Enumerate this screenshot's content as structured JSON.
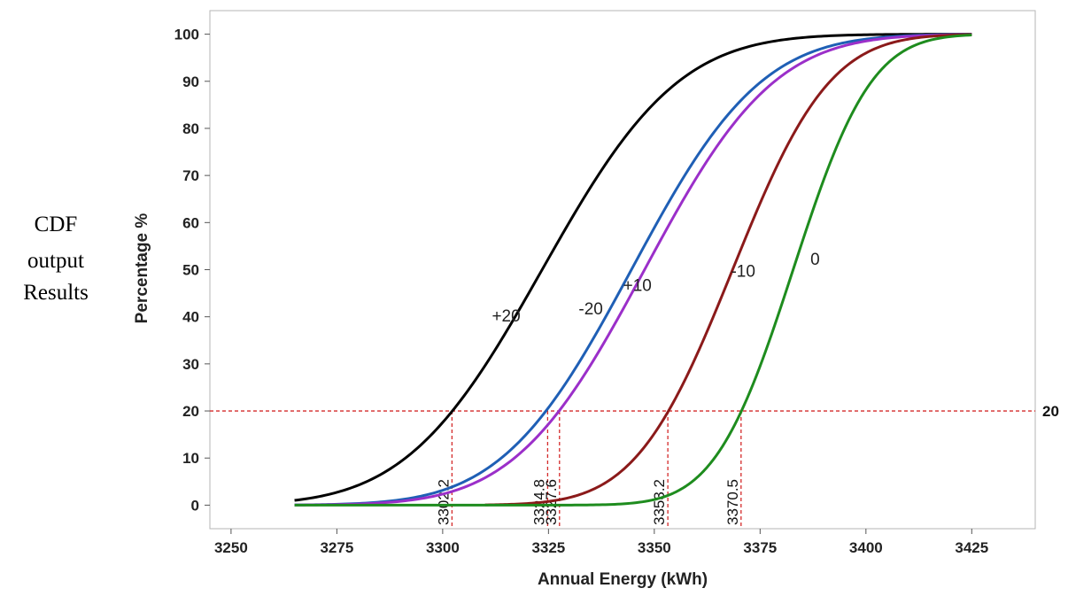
{
  "side_text": [
    "CDF",
    "output",
    "Results"
  ],
  "chart_data": {
    "type": "line",
    "title": "",
    "xlabel": "Annual Energy (kWh)",
    "ylabel": "Percentage %",
    "xlim": [
      3245,
      3440
    ],
    "ylim": [
      -5,
      105
    ],
    "x_ticks": [
      3250,
      3275,
      3300,
      3325,
      3350,
      3375,
      3400,
      3425
    ],
    "y_ticks": [
      0,
      10,
      20,
      30,
      40,
      50,
      60,
      70,
      80,
      90,
      100
    ],
    "grid": false,
    "series": [
      {
        "name": "+20",
        "color": "#000000",
        "mu": 3323.5,
        "sigma": 25.2,
        "x_range": [
          3265,
          3425
        ]
      },
      {
        "name": "-20",
        "color": "#1f5fb5",
        "mu": 3344.6,
        "sigma": 24.0,
        "x_range": [
          3265,
          3425
        ]
      },
      {
        "name": "+10",
        "color": "#9b2fc9",
        "mu": 3347.7,
        "sigma": 24.0,
        "x_range": [
          3265,
          3425
        ]
      },
      {
        "name": "-10",
        "color": "#8b1a1a",
        "mu": 3368.5,
        "sigma": 18.0,
        "x_range": [
          3310,
          3425
        ]
      },
      {
        "name": "0",
        "color": "#1e8c1e",
        "mu": 3382.8,
        "sigma": 14.5,
        "x_range": [
          3265,
          3425
        ]
      }
    ],
    "curve_labels": [
      {
        "text": "+20",
        "x": 3315,
        "y": 39
      },
      {
        "text": "-20",
        "x": 3335,
        "y": 40.5
      },
      {
        "text": "+10",
        "x": 3346,
        "y": 45.5
      },
      {
        "text": "-10",
        "x": 3371,
        "y": 48.5
      },
      {
        "text": "0",
        "x": 3388,
        "y": 51
      }
    ],
    "reference_line_y": {
      "value": 20,
      "label": "20"
    },
    "reference_lines_x": [
      {
        "value": 3302.2,
        "label": "3302.2"
      },
      {
        "value": 3324.8,
        "label": "3324.8"
      },
      {
        "value": 3327.6,
        "label": "3327.6"
      },
      {
        "value": 3353.2,
        "label": "3353.2"
      },
      {
        "value": 3370.5,
        "label": "3370.5"
      }
    ],
    "reference_color": "#d42a2a"
  }
}
